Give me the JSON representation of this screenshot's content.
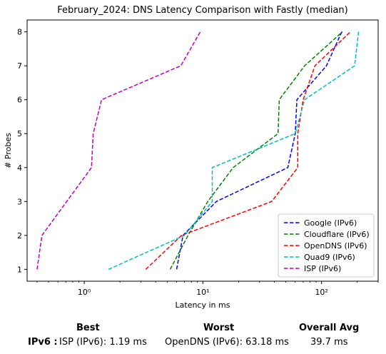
{
  "chart_data": {
    "type": "line",
    "title": "February_2024: DNS Latency Comparison with Fastly (median)",
    "xlabel": "Latency in ms",
    "ylabel": "# Probes",
    "xscale": "log",
    "xlim": [
      0.33,
      300
    ],
    "ylim": [
      0.65,
      8.35
    ],
    "xticks": [
      1,
      10,
      100
    ],
    "xtick_labels": [
      "10⁰",
      "10¹",
      "10²"
    ],
    "yticks": [
      1,
      2,
      3,
      4,
      5,
      6,
      7,
      8
    ],
    "legend_position": "lower right",
    "series": [
      {
        "name": "Google (IPv6)",
        "color": "#0000ff",
        "points": [
          [
            6.0,
            1
          ],
          [
            6.8,
            2
          ],
          [
            13,
            3
          ],
          [
            52,
            4
          ],
          [
            60,
            5
          ],
          [
            62,
            6
          ],
          [
            110,
            7
          ],
          [
            148,
            8
          ]
        ]
      },
      {
        "name": "Cloudflare (IPv6)",
        "color": "#008000",
        "points": [
          [
            5.3,
            1
          ],
          [
            7.5,
            2
          ],
          [
            11,
            3
          ],
          [
            18,
            4
          ],
          [
            43,
            5
          ],
          [
            44,
            6
          ],
          [
            72,
            7
          ],
          [
            150,
            8
          ]
        ]
      },
      {
        "name": "OpenDNS (IPv6)",
        "color": "#ff0000",
        "points": [
          [
            3.3,
            1
          ],
          [
            6.6,
            2
          ],
          [
            38,
            3
          ],
          [
            63,
            4
          ],
          [
            63,
            5
          ],
          [
            70,
            6
          ],
          [
            88,
            7
          ],
          [
            175,
            8
          ]
        ]
      },
      {
        "name": "Quad9 (IPv6)",
        "color": "#00bfbf",
        "points": [
          [
            1.6,
            1
          ],
          [
            7.0,
            2
          ],
          [
            12,
            3
          ],
          [
            12,
            4
          ],
          [
            60,
            5
          ],
          [
            72,
            6
          ],
          [
            190,
            7
          ],
          [
            205,
            8
          ]
        ]
      },
      {
        "name": "ISP (IPv6)",
        "color": "#bf00bf",
        "points": [
          [
            0.4,
            1
          ],
          [
            0.44,
            2
          ],
          [
            1.15,
            4
          ],
          [
            1.19,
            5
          ],
          [
            1.4,
            6
          ],
          [
            6.5,
            7
          ],
          [
            9.5,
            8
          ]
        ]
      }
    ]
  },
  "summary": {
    "headers": {
      "best": "Best",
      "worst": "Worst",
      "overall": "Overall Avg"
    },
    "row_label": "IPv6 :",
    "best": "ISP (IPv6): 1.19 ms",
    "worst": "OpenDNS (IPv6): 63.18 ms",
    "overall": "39.7 ms"
  }
}
